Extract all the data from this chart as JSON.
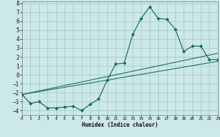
{
  "xlabel": "Humidex (Indice chaleur)",
  "bg_color": "#cce8e8",
  "grid_color": "#aacece",
  "line_color": "#1a6b5a",
  "x_min": 0,
  "x_max": 23,
  "y_min": -4.5,
  "y_max": 8.2,
  "curve1_x": [
    0,
    1,
    2,
    3,
    4,
    5,
    6,
    7,
    8,
    9,
    10,
    11,
    12,
    13,
    14,
    15,
    16,
    17,
    18,
    19,
    20,
    21,
    22,
    23
  ],
  "curve1_y": [
    -2.2,
    -3.2,
    -3.0,
    -3.7,
    -3.7,
    -3.6,
    -3.5,
    -4.0,
    -3.3,
    -2.7,
    -0.6,
    1.2,
    1.3,
    4.5,
    6.3,
    7.6,
    6.3,
    6.2,
    5.1,
    2.6,
    3.2,
    3.2,
    1.7,
    1.7
  ],
  "line1_x": [
    0,
    23
  ],
  "line1_y": [
    -2.2,
    1.5
  ],
  "line2_x": [
    0,
    23
  ],
  "line2_y": [
    -2.2,
    2.4
  ],
  "yticks": [
    -4,
    -3,
    -2,
    -1,
    0,
    1,
    2,
    3,
    4,
    5,
    6,
    7,
    8
  ],
  "xticks": [
    0,
    1,
    2,
    3,
    4,
    5,
    6,
    7,
    8,
    9,
    10,
    11,
    12,
    13,
    14,
    15,
    16,
    17,
    18,
    19,
    20,
    21,
    22,
    23
  ]
}
